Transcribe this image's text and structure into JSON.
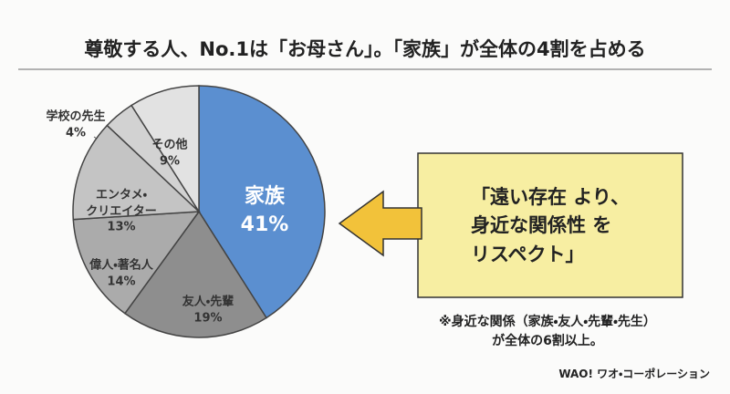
{
  "chart_data": {
    "type": "pie",
    "title": "尊敬する人、No.1は「お母さん」。「家族」が全体の4割を占める",
    "categories": [
      "家族",
      "友人・先輩",
      "偉人・著名人",
      "エンタメ・\nクリエイター",
      "学校の先生",
      "その他"
    ],
    "values": [
      41,
      19,
      14,
      13,
      4,
      9
    ],
    "value_labels": [
      "41%",
      "19%",
      "14%",
      "13%",
      "4%",
      "9%"
    ],
    "colors": [
      "#5b8fd0",
      "#8e8e8e",
      "#ababab",
      "#c4c4c4",
      "#d2d2d2",
      "#e2e2e2"
    ]
  },
  "callout": "「遠い存在 より、\n身近な関係性 を\nリスペクト」",
  "note": "※身近な関係（家族・友人・先輩・先生）\nが全体の6割以上。",
  "logo": "WAO! ワオ・コーポレーション"
}
